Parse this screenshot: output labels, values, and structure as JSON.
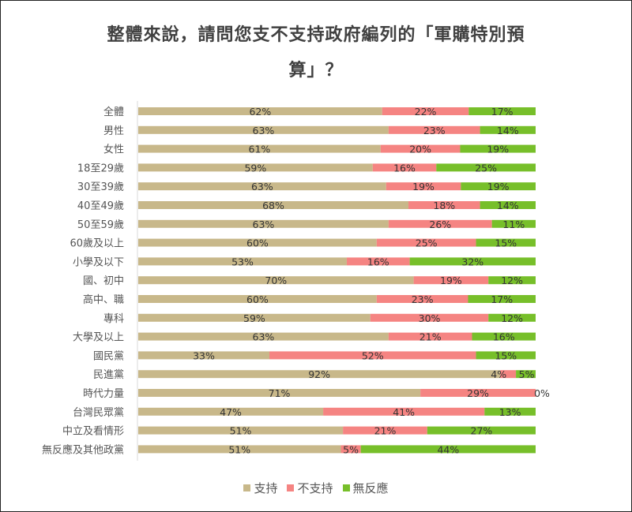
{
  "chart_data": {
    "type": "bar",
    "stacked": true,
    "orientation": "horizontal",
    "title": "整體來說，請問您支不支持政府編列的「軍購特別預算」？",
    "categories": [
      "全體",
      "男性",
      "女性",
      "18至29歲",
      "30至39歲",
      "40至49歲",
      "50至59歲",
      "60歲及以上",
      "小學及以下",
      "國、初中",
      "高中、職",
      "專科",
      "大學及以上",
      "國民黨",
      "民進黨",
      "時代力量",
      "台灣民眾黨",
      "中立及看情形",
      "無反應及其他政黨"
    ],
    "series": [
      {
        "name": "支持",
        "color": "#c8b88a",
        "values": [
          62,
          63,
          61,
          59,
          63,
          68,
          63,
          60,
          53,
          70,
          60,
          59,
          63,
          33,
          92,
          71,
          47,
          51,
          51
        ]
      },
      {
        "name": "不支持",
        "color": "#f58482",
        "values": [
          22,
          23,
          20,
          16,
          19,
          18,
          26,
          25,
          16,
          19,
          23,
          30,
          21,
          52,
          4,
          29,
          41,
          21,
          5
        ]
      },
      {
        "name": "無反應",
        "color": "#77bf2a",
        "values": [
          17,
          14,
          19,
          25,
          19,
          14,
          11,
          15,
          32,
          12,
          17,
          12,
          16,
          15,
          5,
          0,
          13,
          27,
          44
        ]
      }
    ],
    "value_suffix": "%",
    "xlim": [
      0,
      100
    ],
    "legend_position": "bottom",
    "grid": false
  },
  "title_line1": "整體來說，請問您支不支持政府編列的「軍購特別預",
  "title_line2": "算」？"
}
